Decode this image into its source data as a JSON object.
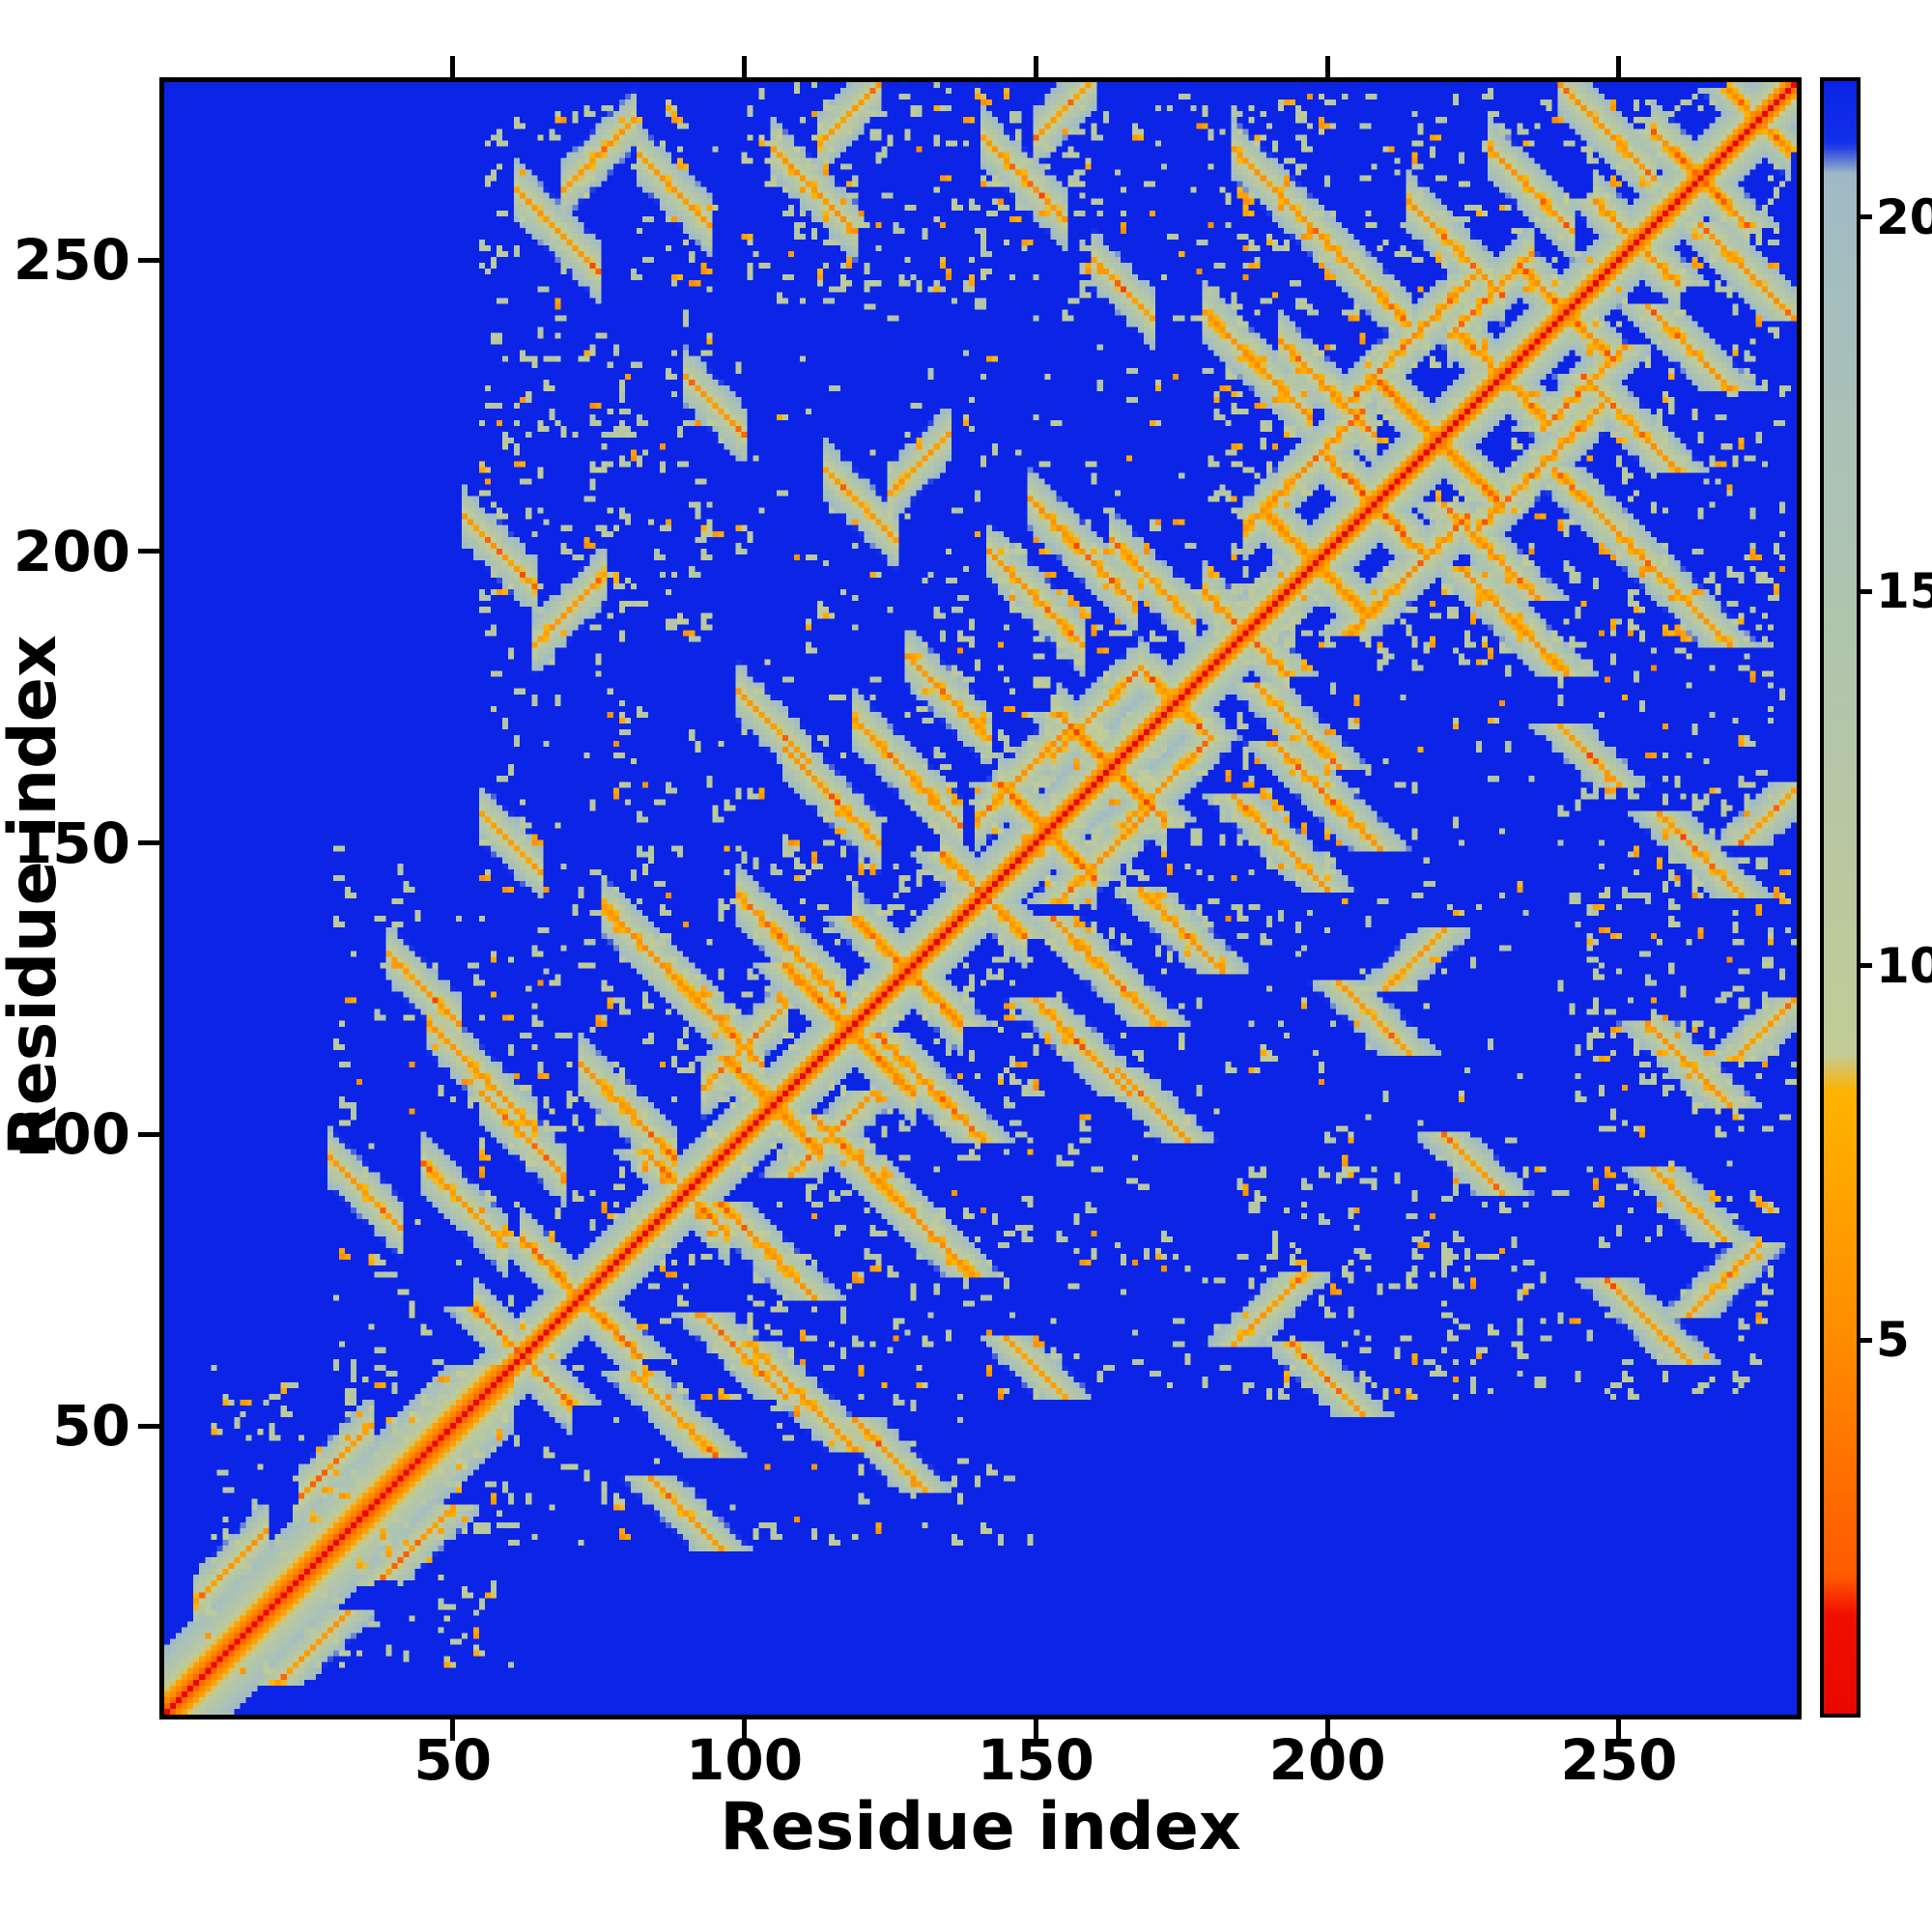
{
  "chart_data": {
    "type": "heatmap",
    "title": "",
    "xlabel": "Residue index",
    "ylabel": "Residue index",
    "x_range": [
      1,
      280
    ],
    "y_range": [
      1,
      280
    ],
    "x_ticks": [
      50,
      100,
      150,
      200,
      250
    ],
    "y_ticks": [
      50,
      100,
      150,
      200,
      250
    ],
    "grid": false,
    "legend": "colorbar-right",
    "colorbar": {
      "min": 0,
      "max": 21.8,
      "ticks": [
        5,
        10,
        15,
        20
      ],
      "stops": [
        [
          0.0,
          "#e80800"
        ],
        [
          1.3,
          "#f01000"
        ],
        [
          1.8,
          "#ff5a00"
        ],
        [
          5.0,
          "#ff8c00"
        ],
        [
          8.3,
          "#ffb300"
        ],
        [
          8.8,
          "#c2cc96"
        ],
        [
          13.0,
          "#b4c6a8"
        ],
        [
          18.0,
          "#a8c0ba"
        ],
        [
          20.6,
          "#a0bac6"
        ],
        [
          21.0,
          "#1430e8"
        ],
        [
          21.8,
          "#0b24e6"
        ]
      ]
    },
    "matrix_model": {
      "description": "Symmetric residue-residue distance map, distances above cutoff rendered blue; red diagonal (zero self-distance), orange near-contacts, gray halo of mid-range distances",
      "n_residues": 280,
      "cutoff": 21.8,
      "seq_scale": 3.8,
      "seq_power": 0.85,
      "wide_band_regions": [
        [
          1,
          60,
          0.7
        ]
      ],
      "contact_format": [
        "i_center",
        "j_center",
        "length",
        "direction(1=parallel,-1=antiparallel)",
        "min_distance"
      ],
      "contacts": [
        [
          62,
          62,
          16,
          -1,
          5
        ],
        [
          72,
          72,
          20,
          -1,
          4.5
        ],
        [
          90,
          90,
          14,
          -1,
          5
        ],
        [
          105,
          105,
          16,
          -1,
          4.5
        ],
        [
          118,
          118,
          22,
          -1,
          4.2
        ],
        [
          128,
          128,
          18,
          -1,
          4.5
        ],
        [
          141,
          141,
          14,
          -1,
          5
        ],
        [
          152,
          152,
          16,
          -1,
          4.5
        ],
        [
          163,
          163,
          18,
          -1,
          4.5
        ],
        [
          174,
          174,
          12,
          -1,
          5
        ],
        [
          186,
          186,
          14,
          -1,
          5
        ],
        [
          198,
          198,
          18,
          -1,
          4.5
        ],
        [
          208,
          208,
          16,
          -1,
          4.5
        ],
        [
          219,
          219,
          20,
          -1,
          4.2
        ],
        [
          230,
          230,
          14,
          -1,
          5
        ],
        [
          241,
          241,
          16,
          -1,
          4.8
        ],
        [
          253,
          253,
          14,
          -1,
          5
        ],
        [
          264,
          264,
          16,
          -1,
          4.6
        ],
        [
          274,
          274,
          10,
          -1,
          5
        ],
        [
          148,
          162,
          16,
          1,
          5
        ],
        [
          160,
          172,
          14,
          1,
          5.2
        ],
        [
          196,
          214,
          20,
          1,
          4.8
        ],
        [
          214,
          236,
          22,
          1,
          4.8
        ],
        [
          228,
          244,
          14,
          1,
          5.2
        ],
        [
          100,
          115,
          14,
          1,
          5.5
        ],
        [
          30,
          44,
          12,
          1,
          5.5
        ],
        [
          12,
          26,
          12,
          1,
          5.5
        ],
        [
          55,
          110,
          18,
          -1,
          5
        ],
        [
          62,
          100,
          14,
          -1,
          5.2
        ],
        [
          80,
          104,
          16,
          -1,
          5
        ],
        [
          85,
          130,
          18,
          -1,
          4.8
        ],
        [
          95,
          120,
          16,
          -1,
          5
        ],
        [
          108,
          132,
          18,
          -1,
          4.6
        ],
        [
          115,
          158,
          16,
          -1,
          5
        ],
        [
          128,
          162,
          18,
          -1,
          4.8
        ],
        [
          135,
          175,
          14,
          -1,
          5.2
        ],
        [
          150,
          192,
          16,
          -1,
          5
        ],
        [
          158,
          200,
          18,
          -1,
          4.8
        ],
        [
          170,
          195,
          14,
          -1,
          5.2
        ],
        [
          188,
          232,
          18,
          -1,
          4.8
        ],
        [
          200,
          228,
          16,
          -1,
          5
        ],
        [
          205,
          248,
          18,
          -1,
          4.8
        ],
        [
          222,
          252,
          16,
          -1,
          5
        ],
        [
          235,
          262,
          14,
          -1,
          5
        ],
        [
          248,
          272,
          16,
          -1,
          4.8
        ],
        [
          58,
          200,
          12,
          -1,
          5.5
        ],
        [
          70,
          190,
          12,
          1,
          5.5
        ],
        [
          45,
          125,
          12,
          -1,
          5.5
        ],
        [
          35,
          90,
          12,
          -1,
          5.5
        ],
        [
          52,
          88,
          14,
          -1,
          5.2
        ],
        [
          68,
          255,
          14,
          -1,
          5.2
        ],
        [
          75,
          268,
          12,
          1,
          5.4
        ],
        [
          88,
          262,
          12,
          -1,
          5.4
        ],
        [
          112,
          262,
          14,
          -1,
          5.2
        ],
        [
          118,
          275,
          10,
          1,
          5.6
        ],
        [
          148,
          264,
          14,
          -1,
          5.2
        ],
        [
          155,
          276,
          10,
          1,
          5.6
        ],
        [
          190,
          263,
          12,
          -1,
          5.4
        ],
        [
          120,
          208,
          12,
          -1,
          5.5
        ],
        [
          130,
          215,
          10,
          1,
          5.6
        ],
        [
          165,
          245,
          10,
          -1,
          5.6
        ],
        [
          60,
          150,
          10,
          -1,
          5.8
        ],
        [
          95,
          225,
          10,
          -1,
          5.8
        ],
        [
          105,
          170,
          12,
          -1,
          5.5
        ]
      ],
      "speckle_region_format": [
        "x0",
        "x1",
        "y0",
        "y1",
        "count"
      ],
      "speckle_regions": [
        [
          30,
          150,
          30,
          150,
          260
        ],
        [
          55,
          235,
          55,
          235,
          420
        ],
        [
          180,
          278,
          180,
          278,
          300
        ],
        [
          55,
          95,
          185,
          278,
          170
        ],
        [
          100,
          200,
          240,
          278,
          170
        ],
        [
          245,
          280,
          100,
          160,
          90
        ],
        [
          8,
          60,
          8,
          60,
          90
        ],
        [
          130,
          170,
          150,
          200,
          120
        ]
      ]
    }
  }
}
